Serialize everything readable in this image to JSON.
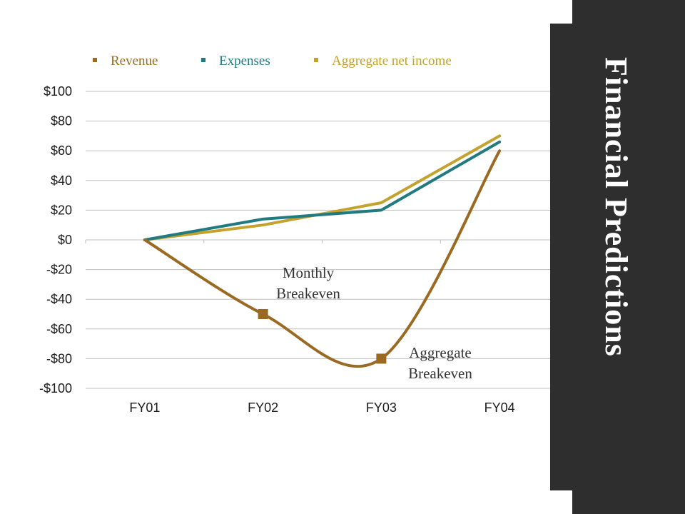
{
  "slide": {
    "title": "Financial Predictions"
  },
  "colors": {
    "revenue": "#9b6a22",
    "expenses": "#217a80",
    "aggregate_net_income": "#c4a22d",
    "grid": "#bfbfbf",
    "panel": "#2e2e2e"
  },
  "chart_data": {
    "type": "line",
    "categories": [
      "FY01",
      "FY02",
      "FY03",
      "FY04"
    ],
    "ylim": [
      -100,
      100
    ],
    "yticks": [
      100,
      80,
      60,
      40,
      20,
      0,
      -20,
      -40,
      -60,
      -80,
      -100
    ],
    "ytick_labels": [
      "$100",
      "$80",
      "$60",
      "$40",
      "$20",
      "$0",
      "-$20",
      "-$40",
      "-$60",
      "-$80",
      "-$100"
    ],
    "grid": true,
    "legend_position": "top",
    "series": [
      {
        "name": "Revenue",
        "color": "#9b6a22",
        "smooth": true,
        "values": [
          0,
          -50,
          -80,
          60
        ]
      },
      {
        "name": "Expenses",
        "color": "#217a80",
        "smooth": false,
        "values": [
          0,
          14,
          20,
          66
        ]
      },
      {
        "name": "Aggregate net income",
        "color": "#c4a22d",
        "smooth": false,
        "values": [
          0,
          10,
          25,
          70
        ]
      }
    ],
    "annotations": [
      {
        "lines": [
          "Monthly",
          "Breakeven"
        ],
        "x": "FY02",
        "y": -50
      },
      {
        "lines": [
          "Aggregate",
          "Breakeven"
        ],
        "x": "FY03",
        "y": -80
      }
    ]
  }
}
